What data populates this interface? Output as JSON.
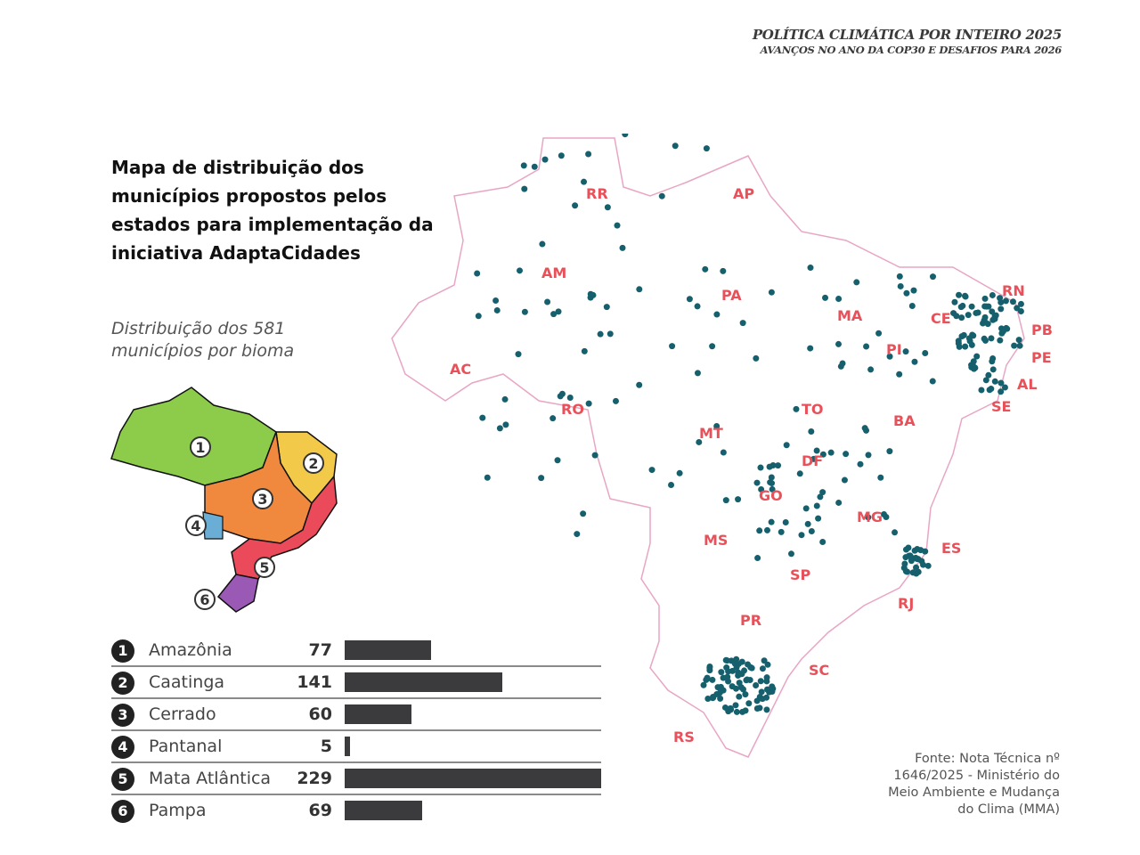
{
  "header": {
    "line1": "POLÍTICA CLIMÁTICA POR INTEIRO 2025",
    "line2": "AVANÇOS NO ANO DA COP30 E DESAFIOS PARA 2026"
  },
  "title": "Mapa de distribuição dos municípios propostos pelos estados para implementação da iniciativa AdaptaCidades",
  "subtitle": {
    "line1": "Distribuição dos 581",
    "line2": "municípios por bioma"
  },
  "minimap_labels": [
    "1",
    "2",
    "3",
    "4",
    "5",
    "6"
  ],
  "colors": {
    "amazonia": "#8dcc4a",
    "caatinga": "#f3c94a",
    "cerrado": "#f0883e",
    "pantanal": "#6aaed6",
    "mata_atlantica": "#ea4a5a",
    "pampa": "#9b59b6",
    "dots": "#16606e",
    "state_label": "#e8515a",
    "border": "#e8a6c4"
  },
  "chart_data": {
    "type": "bar",
    "title": "Distribuição dos 581 municípios por bioma",
    "categories": [
      "Amazônia",
      "Caatinga",
      "Cerrado",
      "Pantanal",
      "Mata Atlântica",
      "Pampa"
    ],
    "numbers": [
      "1",
      "2",
      "3",
      "4",
      "5",
      "6"
    ],
    "values": [
      77,
      141,
      60,
      5,
      229,
      69
    ],
    "xlim": [
      0,
      229
    ]
  },
  "states": [
    "RR",
    "AP",
    "AM",
    "PA",
    "MA",
    "CE",
    "RN",
    "PB",
    "PE",
    "AL",
    "SE",
    "PI",
    "AC",
    "RO",
    "TO",
    "BA",
    "MT",
    "DF",
    "GO",
    "MG",
    "ES",
    "MS",
    "SP",
    "RJ",
    "PR",
    "SC",
    "RS"
  ],
  "source": {
    "line1": "Fonte: Nota Técnica nº",
    "line2": "1646/2025 - Ministério do",
    "line3": "Meio Ambiente e Mudança",
    "line4": "do Clima (MMA)"
  }
}
